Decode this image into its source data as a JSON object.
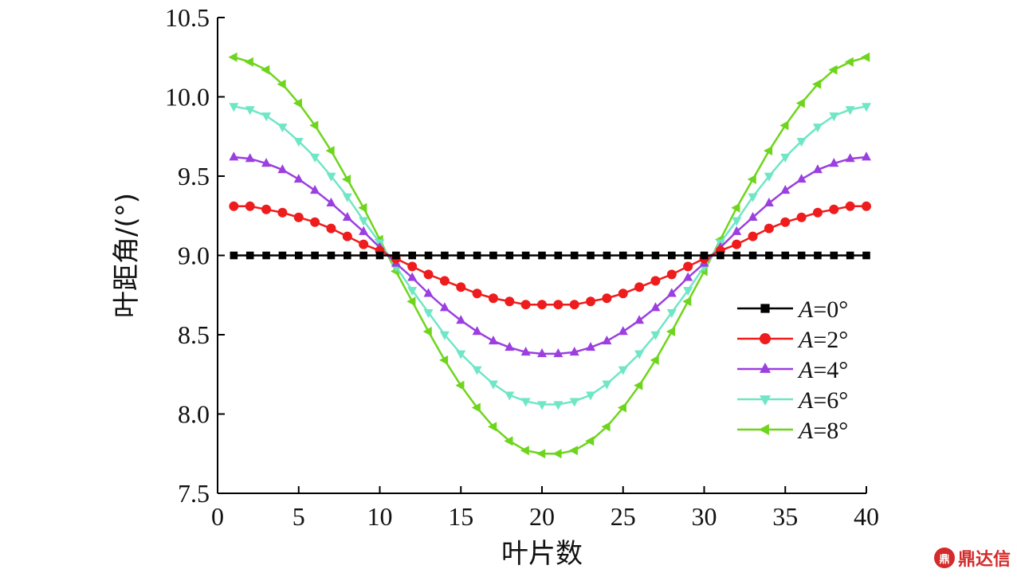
{
  "chart_data": {
    "type": "line",
    "xlabel": "叶片数",
    "ylabel": "叶距角/(°)",
    "xlim": [
      0,
      40
    ],
    "ylim": [
      7.5,
      10.5
    ],
    "xticks": [
      0,
      5,
      10,
      15,
      20,
      25,
      30,
      35,
      40
    ],
    "yticks": [
      "7.5",
      "8.0",
      "8.5",
      "9.0",
      "9.5",
      "10.0",
      "10.5"
    ],
    "grid": false,
    "legend_position": "right",
    "x": [
      1,
      2,
      3,
      4,
      5,
      6,
      7,
      8,
      9,
      10,
      11,
      12,
      13,
      14,
      15,
      16,
      17,
      18,
      19,
      20,
      21,
      22,
      23,
      24,
      25,
      26,
      27,
      28,
      29,
      30,
      31,
      32,
      33,
      34,
      35,
      36,
      37,
      38,
      39,
      40
    ],
    "base": 9.0,
    "series": [
      {
        "label_var": "A",
        "label_value": "=0°",
        "amplitude": 0,
        "color": "#000000",
        "marker": "square",
        "values": [
          9,
          9,
          9,
          9,
          9,
          9,
          9,
          9,
          9,
          9,
          9,
          9,
          9,
          9,
          9,
          9,
          9,
          9,
          9,
          9,
          9,
          9,
          9,
          9,
          9,
          9,
          9,
          9,
          9,
          9,
          9,
          9,
          9,
          9,
          9,
          9,
          9,
          9,
          9,
          9
        ]
      },
      {
        "label_var": "A",
        "label_value": "=2°",
        "amplitude": 2,
        "color": "#ee1c1c",
        "marker": "circle",
        "values": [
          9.31,
          9.31,
          9.29,
          9.27,
          9.24,
          9.21,
          9.17,
          9.12,
          9.07,
          9.03,
          8.98,
          8.93,
          8.88,
          8.84,
          8.8,
          8.76,
          8.73,
          8.71,
          8.69,
          8.69,
          8.69,
          8.69,
          8.71,
          8.73,
          8.76,
          8.8,
          8.84,
          8.88,
          8.93,
          8.98,
          9.03,
          9.07,
          9.12,
          9.17,
          9.21,
          9.24,
          9.27,
          9.29,
          9.31,
          9.31
        ]
      },
      {
        "label_var": "A",
        "label_value": "=4°",
        "amplitude": 4,
        "color": "#9b3fe0",
        "marker": "triangle-up",
        "values": [
          9.62,
          9.61,
          9.58,
          9.54,
          9.48,
          9.41,
          9.33,
          9.24,
          9.15,
          9.05,
          8.95,
          8.86,
          8.76,
          8.67,
          8.59,
          8.52,
          8.46,
          8.42,
          8.39,
          8.38,
          8.38,
          8.39,
          8.42,
          8.46,
          8.52,
          8.59,
          8.67,
          8.76,
          8.86,
          8.95,
          9.05,
          9.15,
          9.24,
          9.33,
          9.41,
          9.48,
          9.54,
          9.58,
          9.61,
          9.62
        ]
      },
      {
        "label_var": "A",
        "label_value": "=6°",
        "amplitude": 6,
        "color": "#6fe6c6",
        "marker": "triangle-down",
        "values": [
          9.94,
          9.92,
          9.88,
          9.81,
          9.72,
          9.62,
          9.5,
          9.37,
          9.22,
          9.08,
          8.93,
          8.78,
          8.64,
          8.5,
          8.38,
          8.28,
          8.19,
          8.12,
          8.08,
          8.06,
          8.06,
          8.08,
          8.12,
          8.19,
          8.28,
          8.38,
          8.5,
          8.64,
          8.78,
          8.93,
          9.08,
          9.22,
          9.37,
          9.5,
          9.62,
          9.72,
          9.81,
          9.88,
          9.92,
          9.94
        ]
      },
      {
        "label_var": "A",
        "label_value": "=8°",
        "amplitude": 8,
        "color": "#6ed51c",
        "marker": "triangle-left",
        "values": [
          10.25,
          10.22,
          10.17,
          10.08,
          9.96,
          9.82,
          9.66,
          9.48,
          9.3,
          9.1,
          8.9,
          8.71,
          8.52,
          8.34,
          8.18,
          8.04,
          7.92,
          7.83,
          7.77,
          7.75,
          7.75,
          7.77,
          7.83,
          7.92,
          8.04,
          8.18,
          8.34,
          8.52,
          8.71,
          8.9,
          9.1,
          9.3,
          9.48,
          9.66,
          9.82,
          9.96,
          10.08,
          10.17,
          10.22,
          10.25
        ]
      }
    ]
  },
  "watermark": {
    "logo_glyph": "鼎",
    "text": "鼎达信"
  }
}
